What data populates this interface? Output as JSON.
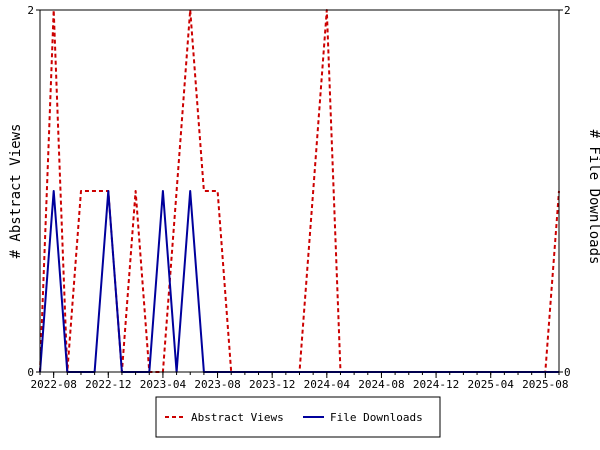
{
  "chart_data": {
    "type": "line",
    "title": "",
    "x": [
      "2022-07",
      "2022-08",
      "2022-09",
      "2022-10",
      "2022-11",
      "2022-12",
      "2023-01",
      "2023-02",
      "2023-03",
      "2023-04",
      "2023-05",
      "2023-06",
      "2023-07",
      "2023-08",
      "2023-09",
      "2023-10",
      "2023-11",
      "2023-12",
      "2024-01",
      "2024-02",
      "2024-03",
      "2024-04",
      "2024-05",
      "2024-06",
      "2024-07",
      "2024-08",
      "2024-09",
      "2024-10",
      "2024-11",
      "2024-12",
      "2025-01",
      "2025-02",
      "2025-03",
      "2025-04",
      "2025-05",
      "2025-06",
      "2025-07",
      "2025-08",
      "2025-09"
    ],
    "xticks": [
      "2022-08",
      "2022-12",
      "2023-04",
      "2023-08",
      "2023-12",
      "2024-04",
      "2024-08",
      "2024-12",
      "2025-04",
      "2025-08"
    ],
    "series": [
      {
        "name": "Abstract Views",
        "axis": "left",
        "color": "#cc0000",
        "style": "dashed",
        "values": [
          0,
          2,
          0,
          1,
          1,
          1,
          0,
          1,
          0,
          0,
          1,
          2,
          1,
          1,
          0,
          0,
          0,
          0,
          0,
          0,
          1,
          2,
          0,
          0,
          0,
          0,
          0,
          0,
          0,
          0,
          0,
          0,
          0,
          0,
          0,
          0,
          0,
          0,
          1
        ]
      },
      {
        "name": "File Downloads",
        "axis": "right",
        "color": "#00009c",
        "style": "solid",
        "values": [
          0,
          1,
          0,
          0,
          0,
          1,
          0,
          0,
          0,
          1,
          0,
          1,
          0,
          0,
          0,
          0,
          0,
          0,
          0,
          0,
          0,
          0,
          0,
          0,
          0,
          0,
          0,
          0,
          0,
          0,
          0,
          0,
          0,
          0,
          0,
          0,
          0,
          0,
          0
        ]
      }
    ],
    "ylabel": "# Abstract Views",
    "y2label": "# File Downloads",
    "ylim": [
      0,
      2
    ],
    "y2lim": [
      0,
      2
    ],
    "yticks": [
      "0",
      "2"
    ],
    "y2ticks": [
      "0",
      "2"
    ],
    "grid": false,
    "legend_position": "bottom"
  }
}
